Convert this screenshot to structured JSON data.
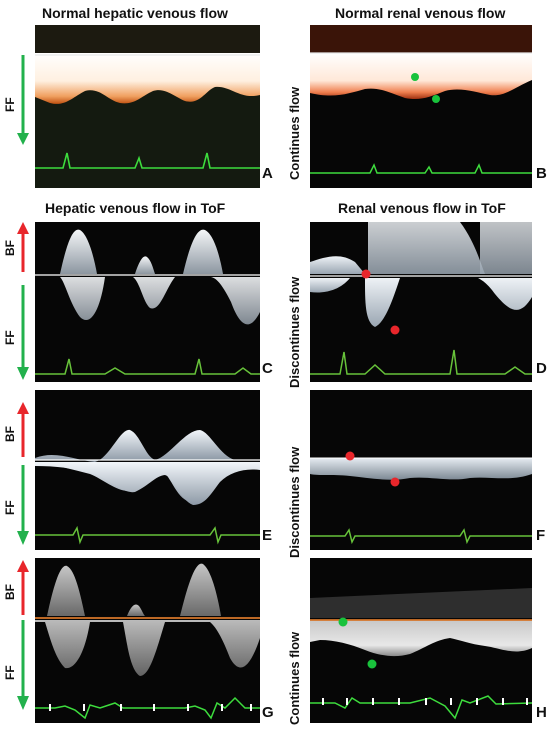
{
  "titles": {
    "top_left": "Normal hepatic venous flow",
    "top_right": "Normal renal venous flow",
    "mid_left": "Hepatic venous flow in ToF",
    "mid_right": "Renal venous flow in ToF"
  },
  "panel_labels": {
    "a": "A",
    "b": "B",
    "c": "C",
    "d": "D",
    "e": "E",
    "f": "F",
    "g": "G",
    "h": "H"
  },
  "side_labels": {
    "ff": "FF",
    "bf": "BF",
    "continues_flow": "Continues flow",
    "discontinues_flow": "Discontinues flow"
  },
  "colors": {
    "forward_arrow": "#22b14c",
    "backward_arrow": "#e8262b",
    "ecg_trace": "#3ddc3d",
    "marker_green": "#19c23c",
    "marker_red": "#e8262b",
    "baseline_orange": "#d6762a"
  }
}
